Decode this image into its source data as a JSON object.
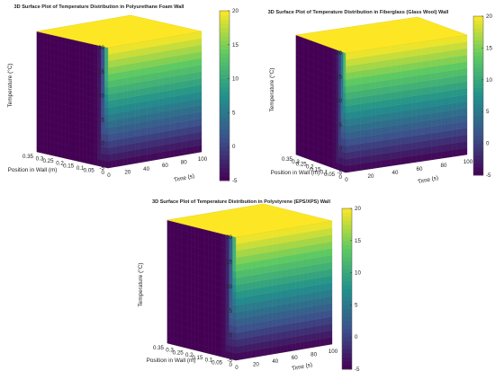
{
  "colors": {
    "colormap": [
      "#440154",
      "#3b528b",
      "#21918c",
      "#5ec962",
      "#fde725"
    ],
    "top": "#fde725",
    "background": "#ffffff"
  },
  "chart_data": [
    {
      "type": "surface",
      "title": "3D Surface Plot of Temperature Distribution in Polyurethane Foam Wall",
      "xlabel": "Position in Wall (m)",
      "ylabel": "Time (s)",
      "zlabel": "Temperature (°C)",
      "x_ticks": [
        0,
        0.05,
        0.1,
        0.15,
        0.2,
        0.25,
        0.3,
        0.35
      ],
      "y_ticks": [
        0,
        20,
        40,
        60,
        80,
        100
      ],
      "z_ticks": [
        -5,
        0,
        5,
        10,
        15,
        20
      ],
      "xlim": [
        0,
        0.35
      ],
      "ylim": [
        0,
        100
      ],
      "zlim": [
        -5,
        20
      ],
      "colorbar_ticks": [
        -5,
        0,
        5,
        10,
        15,
        20
      ],
      "colorbar_range": [
        -5,
        20
      ],
      "surface": {
        "x_min": 0,
        "x_max": 0.35,
        "t_min": 0,
        "t_max": 100,
        "T_hot": 20,
        "T_cold": -5,
        "diffusion_scale": 0.035
      }
    },
    {
      "type": "surface",
      "title": "3D Surface Plot of Temperature Distribution in Fiberglass (Glass Wool) Wall",
      "xlabel": "Position in Wall (m)",
      "ylabel": "Time (s)",
      "zlabel": "Temperature (°C)",
      "x_ticks": [
        0,
        0.05,
        0.1,
        0.15,
        0.2,
        0.25,
        0.3,
        0.35
      ],
      "y_ticks": [
        0,
        20,
        40,
        60,
        80,
        100
      ],
      "z_ticks": [
        -5,
        0,
        5,
        10,
        15,
        20
      ],
      "xlim": [
        0,
        0.35
      ],
      "ylim": [
        0,
        100
      ],
      "zlim": [
        -5,
        20
      ],
      "colorbar_ticks": [
        -5,
        0,
        5,
        10,
        15,
        20
      ],
      "colorbar_range": [
        -5,
        20
      ],
      "surface": {
        "x_min": 0,
        "x_max": 0.35,
        "t_min": 0,
        "t_max": 100,
        "T_hot": 20,
        "T_cold": -5,
        "diffusion_scale": 0.05
      }
    },
    {
      "type": "surface",
      "title": "3D Surface Plot of Temperature Distribution in Polystyrene (EPS/XPS) Wall",
      "xlabel": "Position in Wall (m)",
      "ylabel": "Time (s)",
      "zlabel": "Temperature (°C)",
      "x_ticks": [
        0,
        0.05,
        0.1,
        0.15,
        0.2,
        0.25,
        0.3,
        0.35
      ],
      "y_ticks": [
        0,
        20,
        40,
        60,
        80,
        100
      ],
      "z_ticks": [
        -5,
        0,
        5,
        10,
        15,
        20
      ],
      "xlim": [
        0,
        0.35
      ],
      "ylim": [
        0,
        100
      ],
      "zlim": [
        -5,
        20
      ],
      "colorbar_ticks": [
        -5,
        0,
        5,
        10,
        15,
        20
      ],
      "colorbar_range": [
        -5,
        20
      ],
      "surface": {
        "x_min": 0,
        "x_max": 0.35,
        "t_min": 0,
        "t_max": 100,
        "T_hot": 20,
        "T_cold": -5,
        "diffusion_scale": 0.04
      }
    }
  ]
}
